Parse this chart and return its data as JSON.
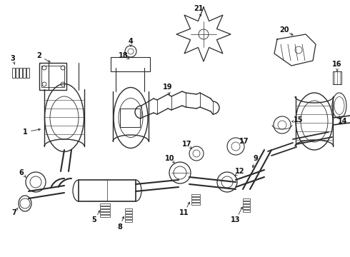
{
  "bg_color": "#ffffff",
  "fig_width": 4.9,
  "fig_height": 3.6,
  "dpi": 100,
  "line_color": "#2a2a2a",
  "text_color": "#111111",
  "label_fontsize": 7.0,
  "xlim": [
    0,
    490
  ],
  "ylim": [
    0,
    360
  ]
}
